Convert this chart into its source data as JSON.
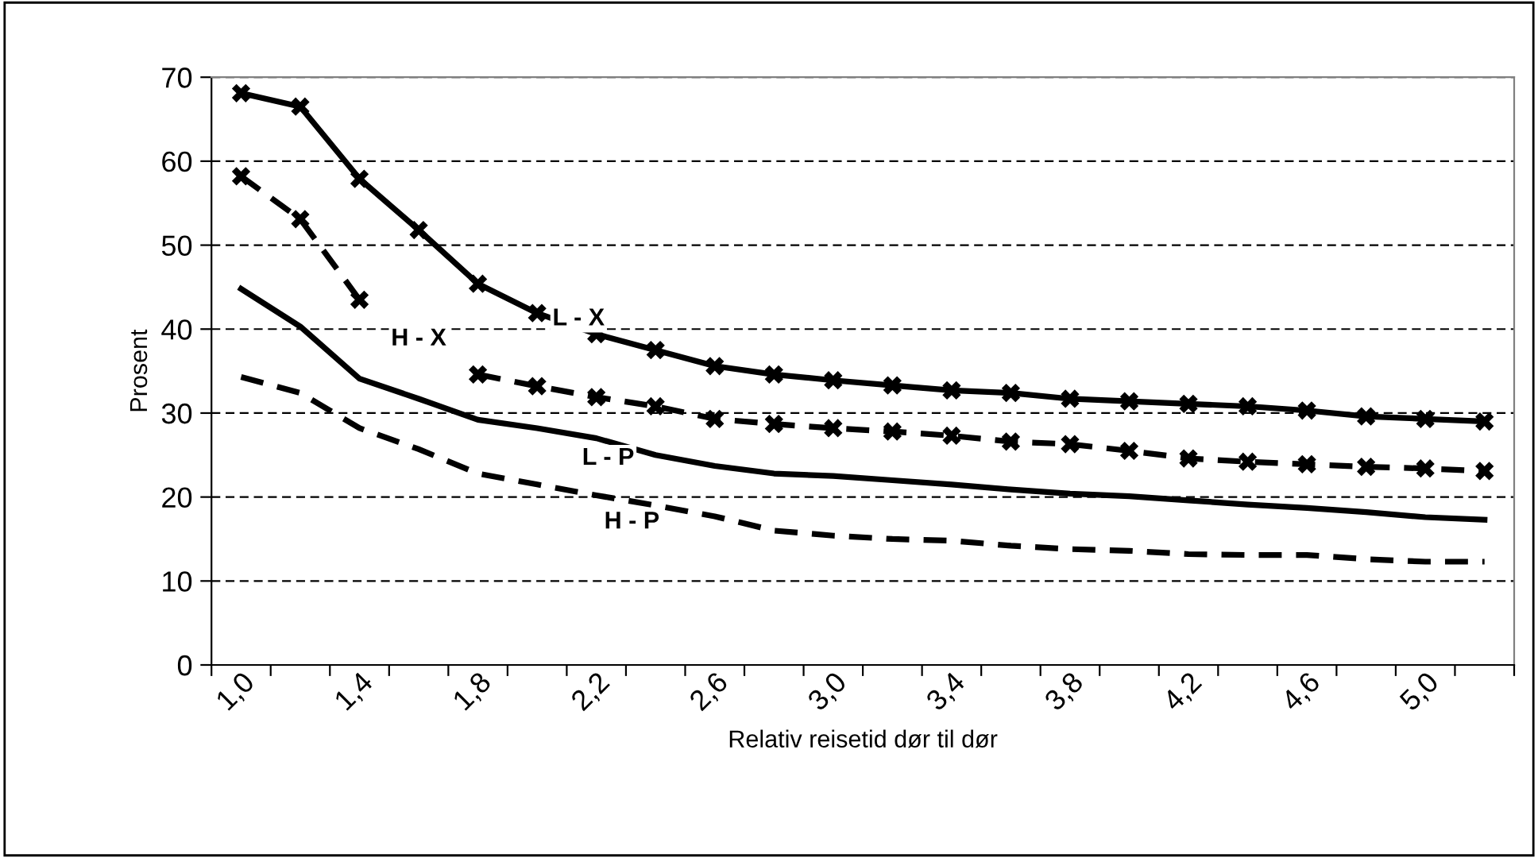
{
  "chart_data": {
    "type": "line",
    "xlabel": "Relativ reisetid dør til dør",
    "ylabel": "Prosent",
    "categories": [
      "1,0",
      null,
      "1,4",
      null,
      "1,8",
      null,
      "2,2",
      null,
      "2,6",
      null,
      "3,0",
      null,
      "3,4",
      null,
      "3,8",
      null,
      "4,2",
      null,
      "4,6",
      null,
      "5,0",
      null
    ],
    "ylim": [
      0,
      70
    ],
    "yticks": [
      0,
      10,
      20,
      30,
      40,
      50,
      60,
      70
    ],
    "grid": "y",
    "legend": false,
    "series": [
      {
        "name": "L - X",
        "color": "#000000",
        "marker": "cross",
        "line_style": "solid",
        "values": [
          68.1,
          66.5,
          57.9,
          51.8,
          45.4,
          41.9,
          39.4,
          37.5,
          35.6,
          34.6,
          33.9,
          33.3,
          32.7,
          32.4,
          31.7,
          31.4,
          31.1,
          30.8,
          30.3,
          29.6,
          29.3,
          29.0
        ]
      },
      {
        "name": "H - X",
        "color": "#000000",
        "marker": "cross",
        "line_style": "dashed",
        "values": [
          58.2,
          53.1,
          43.5,
          null,
          34.6,
          33.2,
          31.9,
          30.8,
          29.3,
          28.7,
          28.2,
          27.8,
          27.3,
          26.6,
          26.3,
          25.5,
          24.6,
          24.2,
          23.9,
          23.6,
          23.4,
          23.1
        ]
      },
      {
        "name": "L - P",
        "color": "#000000",
        "marker": "none",
        "line_style": "solid",
        "values": [
          44.8,
          40.3,
          34.1,
          31.7,
          29.2,
          28.2,
          27.0,
          25.0,
          23.7,
          22.8,
          22.5,
          22.0,
          21.5,
          20.9,
          20.4,
          20.1,
          19.6,
          19.1,
          18.7,
          18.2,
          17.6,
          17.3
        ]
      },
      {
        "name": "H - P",
        "color": "#000000",
        "marker": "none",
        "line_style": "dashed",
        "values": [
          34.3,
          32.4,
          28.2,
          25.7,
          22.8,
          21.5,
          20.2,
          19.0,
          17.7,
          16.0,
          15.4,
          15.0,
          14.8,
          14.2,
          13.8,
          13.6,
          13.2,
          13.1,
          13.1,
          12.6,
          12.3,
          12.3
        ]
      }
    ]
  }
}
